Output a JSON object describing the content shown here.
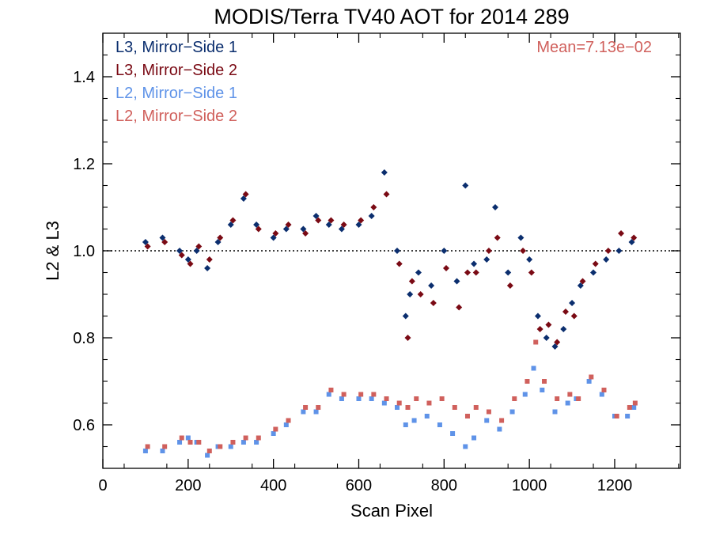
{
  "chart_data": {
    "type": "scatter",
    "title": "MODIS/Terra TV40 AOT for 2014 289",
    "xlabel": "Scan Pixel",
    "ylabel": "L2 & L3",
    "xlim": [
      0,
      1354
    ],
    "ylim": [
      0.5,
      1.5
    ],
    "xticks": [
      0,
      200,
      400,
      600,
      800,
      1000,
      1200
    ],
    "xtick_labels": [
      "0",
      "200",
      "400",
      "600",
      "800",
      "1000",
      "1200"
    ],
    "yticks": [
      0.6,
      0.8,
      1.0,
      1.2,
      1.4
    ],
    "ytick_labels": [
      "0.6",
      "0.8",
      "1.0",
      "1.2",
      "1.4"
    ],
    "reference_line": 1.0,
    "annotation": "Mean=7.13e−02",
    "legend_placement": "top-left",
    "series": [
      {
        "name": "L3, Mirror−Side 1",
        "color": "#0b2e6e",
        "marker": "diamond",
        "x": [
          100,
          140,
          180,
          200,
          220,
          245,
          270,
          300,
          330,
          360,
          400,
          430,
          470,
          500,
          530,
          560,
          600,
          630,
          660,
          690,
          710,
          720,
          740,
          770,
          800,
          830,
          850,
          870,
          900,
          920,
          950,
          980,
          1000,
          1020,
          1040,
          1060,
          1080,
          1100,
          1120,
          1150,
          1180,
          1210,
          1240
        ],
        "y": [
          1.02,
          1.03,
          1.0,
          0.98,
          1.0,
          0.96,
          1.02,
          1.06,
          1.12,
          1.06,
          1.03,
          1.05,
          1.05,
          1.08,
          1.06,
          1.05,
          1.06,
          1.08,
          1.18,
          1.0,
          0.85,
          0.9,
          0.95,
          0.92,
          1.0,
          0.93,
          1.15,
          0.97,
          0.98,
          1.1,
          0.95,
          1.03,
          0.98,
          0.85,
          0.8,
          0.78,
          0.82,
          0.88,
          0.92,
          0.95,
          0.98,
          1.0,
          1.02
        ]
      },
      {
        "name": "L3, Mirror−Side 2",
        "color": "#7a0a14",
        "marker": "diamond",
        "x": [
          105,
          145,
          185,
          205,
          225,
          250,
          275,
          305,
          335,
          365,
          405,
          435,
          475,
          505,
          535,
          565,
          605,
          635,
          665,
          695,
          715,
          725,
          745,
          775,
          805,
          835,
          855,
          875,
          905,
          925,
          955,
          985,
          1005,
          1025,
          1045,
          1065,
          1085,
          1105,
          1125,
          1155,
          1185,
          1215,
          1245
        ],
        "y": [
          1.01,
          1.02,
          0.99,
          0.97,
          1.01,
          0.98,
          1.03,
          1.07,
          1.13,
          1.05,
          1.04,
          1.06,
          1.04,
          1.07,
          1.07,
          1.06,
          1.07,
          1.1,
          1.13,
          0.97,
          0.8,
          0.93,
          0.9,
          0.88,
          0.96,
          0.87,
          0.95,
          0.95,
          1.0,
          1.03,
          0.92,
          1.0,
          0.95,
          0.82,
          0.83,
          0.79,
          0.86,
          0.85,
          0.93,
          0.97,
          1.0,
          1.04,
          1.03
        ]
      },
      {
        "name": "L2, Mirror−Side 1",
        "color": "#5f93e8",
        "marker": "square",
        "x": [
          100,
          140,
          180,
          200,
          220,
          245,
          270,
          300,
          330,
          360,
          400,
          430,
          470,
          500,
          530,
          560,
          600,
          630,
          660,
          690,
          710,
          730,
          760,
          790,
          820,
          850,
          870,
          900,
          930,
          960,
          990,
          1010,
          1030,
          1060,
          1090,
          1110,
          1140,
          1170,
          1200,
          1230,
          1245
        ],
        "y": [
          0.54,
          0.54,
          0.56,
          0.57,
          0.56,
          0.53,
          0.55,
          0.55,
          0.56,
          0.56,
          0.58,
          0.6,
          0.63,
          0.63,
          0.67,
          0.66,
          0.66,
          0.66,
          0.65,
          0.64,
          0.6,
          0.61,
          0.62,
          0.6,
          0.58,
          0.55,
          0.57,
          0.61,
          0.59,
          0.63,
          0.67,
          0.73,
          0.68,
          0.63,
          0.65,
          0.66,
          0.7,
          0.67,
          0.62,
          0.62,
          0.64
        ]
      },
      {
        "name": "L2, Mirror−Side 2",
        "color": "#d0605c",
        "marker": "square",
        "x": [
          105,
          145,
          185,
          205,
          225,
          250,
          275,
          305,
          335,
          365,
          405,
          435,
          475,
          505,
          535,
          565,
          605,
          635,
          665,
          695,
          715,
          735,
          765,
          795,
          825,
          855,
          875,
          905,
          935,
          965,
          995,
          1015,
          1035,
          1065,
          1095,
          1115,
          1145,
          1175,
          1205,
          1235,
          1248
        ],
        "y": [
          0.55,
          0.55,
          0.57,
          0.56,
          0.56,
          0.54,
          0.55,
          0.56,
          0.57,
          0.57,
          0.59,
          0.61,
          0.64,
          0.64,
          0.68,
          0.67,
          0.67,
          0.67,
          0.66,
          0.65,
          0.64,
          0.66,
          0.65,
          0.66,
          0.64,
          0.62,
          0.64,
          0.63,
          0.61,
          0.66,
          0.7,
          0.79,
          0.7,
          0.66,
          0.67,
          0.66,
          0.71,
          0.68,
          0.62,
          0.64,
          0.65
        ]
      }
    ]
  }
}
